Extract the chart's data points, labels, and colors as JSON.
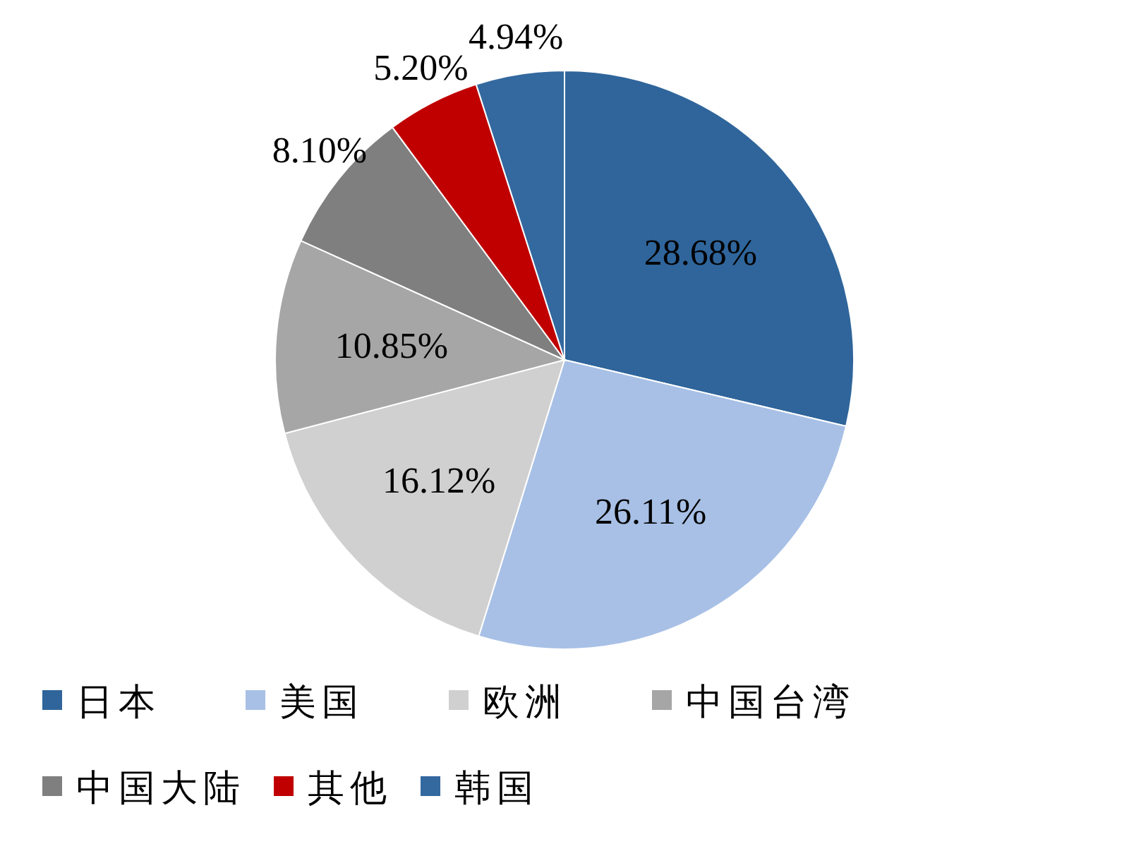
{
  "chart_data": {
    "type": "pie",
    "categories": [
      "日本",
      "美国",
      "欧洲",
      "中国台湾",
      "中国大陆",
      "其他",
      "韩国"
    ],
    "values": [
      28.68,
      26.11,
      16.12,
      10.85,
      8.1,
      5.2,
      4.94
    ],
    "colors": [
      "#2f659b",
      "#a8c0e6",
      "#d0d0d0",
      "#a6a6a6",
      "#7f7f7f",
      "#c00000",
      "#3469a0"
    ],
    "value_labels": [
      "28.68%",
      "26.11%",
      "16.12%",
      "10.85%",
      "8.10%",
      "5.20%",
      "4.94%"
    ],
    "legend": "bottom"
  }
}
